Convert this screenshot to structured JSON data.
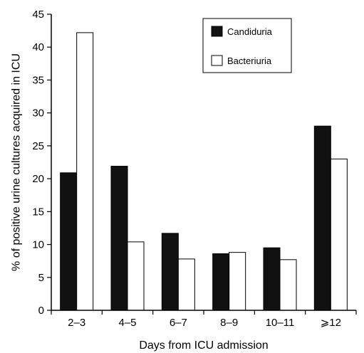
{
  "chart_data": {
    "type": "bar",
    "categories": [
      "2–3",
      "4–5",
      "6–7",
      "8–9",
      "10–11",
      "⩾12"
    ],
    "series": [
      {
        "name": "Candiduria",
        "values": [
          20.9,
          21.9,
          11.7,
          8.6,
          9.5,
          28.0
        ],
        "color": "#111111"
      },
      {
        "name": "Bacteriuria",
        "values": [
          42.2,
          10.4,
          7.8,
          8.8,
          7.7,
          23.0
        ],
        "color": "#ffffff"
      }
    ],
    "xlabel": "Days from ICU admission",
    "ylabel": "% of positive urine cultures acquired in ICU",
    "ylim": [
      0,
      45
    ],
    "yticks": [
      0,
      5,
      10,
      15,
      20,
      25,
      30,
      35,
      40,
      45
    ],
    "grid": false,
    "legend_position": "top-right"
  }
}
